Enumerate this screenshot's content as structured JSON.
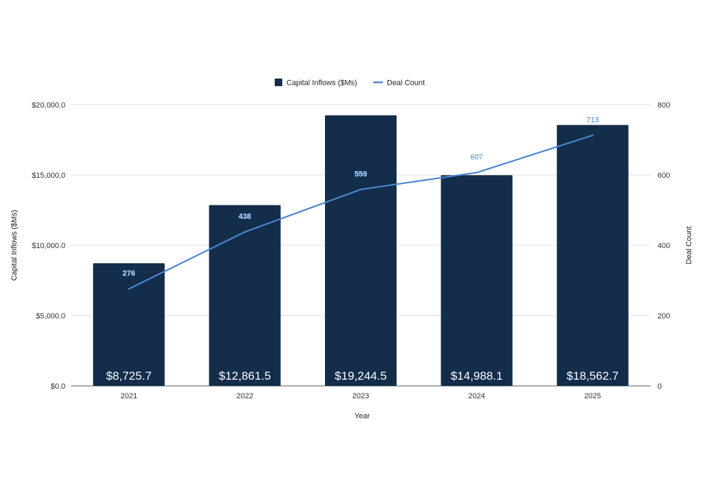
{
  "chart_data": {
    "type": "bar",
    "title": "",
    "xlabel": "Year",
    "ylabel": "Capital Inflows ($Ms)",
    "y2label": "Deal Count",
    "categories": [
      "2021",
      "2022",
      "2023",
      "2024",
      "2025"
    ],
    "ylim": [
      0,
      20000
    ],
    "y2lim": [
      0,
      800
    ],
    "yticks": [
      "$0.0",
      "$5,000.0",
      "$10,000.0",
      "$15,000.0",
      "$20,000.0"
    ],
    "y2ticks": [
      "0",
      "200",
      "400",
      "600",
      "800"
    ],
    "grid": true,
    "legend_position": "top",
    "series": [
      {
        "name": "Capital Inflows ($Ms)",
        "type": "bar",
        "axis": "left",
        "color": "#132d4a",
        "values": [
          8725.7,
          12861.5,
          19244.5,
          14988.1,
          18562.7
        ],
        "labels": [
          "$8,725.7",
          "$12,861.5",
          "$19,244.5",
          "$14,988.1",
          "$18,562.7"
        ]
      },
      {
        "name": "Deal Count",
        "type": "line",
        "axis": "right",
        "color": "#4a86d0",
        "values": [
          276,
          438,
          559,
          607,
          713
        ],
        "labels": [
          "276",
          "438",
          "559",
          "607",
          "713"
        ]
      }
    ]
  }
}
